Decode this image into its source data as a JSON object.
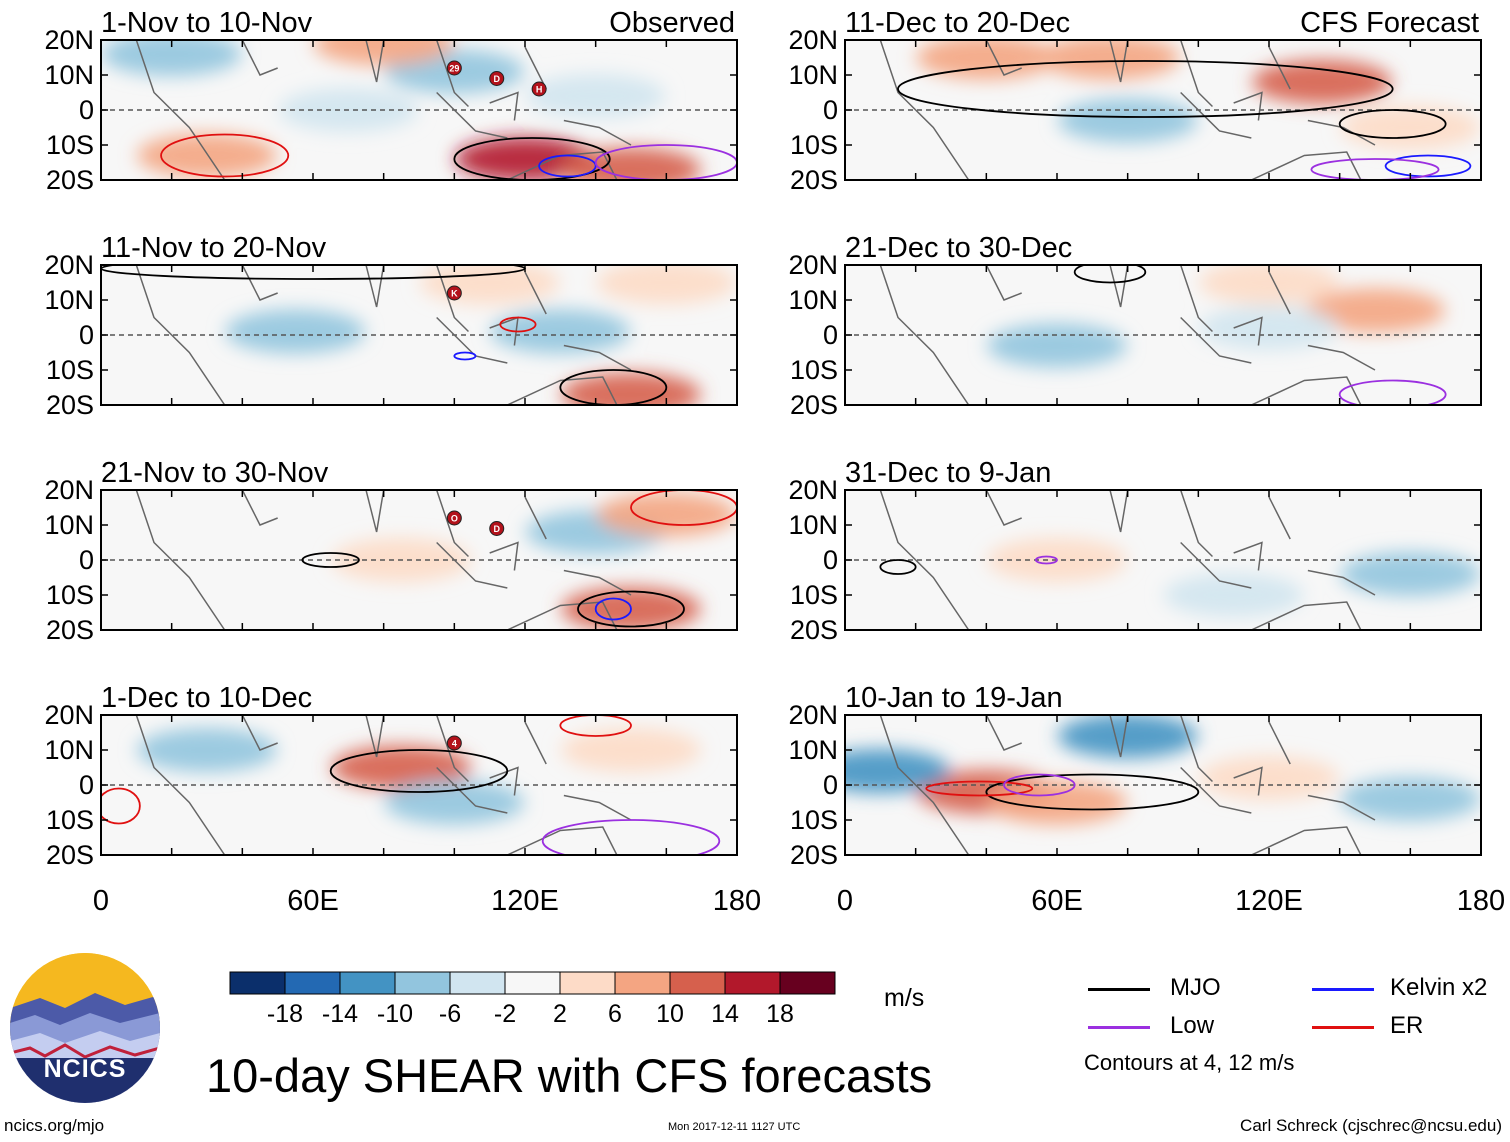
{
  "title": "10-day SHEAR with CFS forecasts",
  "units": "m/s",
  "contour_note": "Contours at 4, 12 m/s",
  "logo_text": "NCICS",
  "footer": {
    "site": "ncics.org/mjo",
    "timestamp": "Mon 2017-12-11 1127 UTC",
    "author": "Carl Schreck (cjschrec@ncsu.edu)"
  },
  "column_labels": {
    "observed": "Observed",
    "forecast": "CFS Forecast"
  },
  "legend": [
    {
      "label": "MJO",
      "color": "#000000"
    },
    {
      "label": "Kelvin x2",
      "color": "#1a1aff"
    },
    {
      "label": "Low",
      "color": "#9b30e0"
    },
    {
      "label": "ER",
      "color": "#e01010"
    }
  ],
  "colorbar": {
    "colors": [
      "#0b2f6b",
      "#2369b3",
      "#4393c3",
      "#92c5de",
      "#d1e5f0",
      "#f7f7f7",
      "#fddbc7",
      "#f4a582",
      "#d6604d",
      "#b2182b",
      "#67001f"
    ],
    "tick_labels": [
      "-18",
      "-14",
      "-10",
      "-6",
      "-2",
      "2",
      "6",
      "10",
      "14",
      "18"
    ]
  },
  "chart_data": {
    "type": "heatmap",
    "variable": "10-day vertical wind shear anomaly",
    "x_axis": {
      "ticks": [
        "0",
        "60E",
        "120E",
        "180"
      ],
      "range": [
        0,
        180
      ]
    },
    "y_axis": {
      "ticks": [
        "20N",
        "10N",
        "0",
        "10S",
        "20S"
      ],
      "range": [
        -20,
        20
      ]
    },
    "panels": [
      {
        "period": "1-Nov to 10-Nov",
        "column": "Observed",
        "blobs": [
          {
            "lon": 30,
            "lat": -13,
            "value": 10
          },
          {
            "lon": 120,
            "lat": -14,
            "value": 16
          },
          {
            "lon": 150,
            "lat": -17,
            "value": 12
          },
          {
            "lon": 70,
            "lat": 0,
            "value": -5
          },
          {
            "lon": 100,
            "lat": 11,
            "value": -6
          },
          {
            "lon": 20,
            "lat": 16,
            "value": -8
          },
          {
            "lon": 140,
            "lat": 4,
            "value": -4
          },
          {
            "lon": 80,
            "lat": 19,
            "value": 8
          }
        ],
        "contours": [
          {
            "type": "MJO",
            "lon": 122,
            "lat": -14,
            "rx": 22,
            "ry": 6
          },
          {
            "type": "ER",
            "lon": 35,
            "lat": -13,
            "rx": 18,
            "ry": 6
          },
          {
            "type": "Kelvin x2",
            "lon": 132,
            "lat": -16,
            "rx": 8,
            "ry": 3
          },
          {
            "type": "Low",
            "lon": 160,
            "lat": -15,
            "rx": 20,
            "ry": 5
          }
        ],
        "storms": [
          "29",
          "D",
          "H"
        ]
      },
      {
        "period": "11-Nov to 20-Nov",
        "column": "Observed",
        "blobs": [
          {
            "lon": 150,
            "lat": -17,
            "value": 14
          },
          {
            "lon": 55,
            "lat": 1,
            "value": -8
          },
          {
            "lon": 130,
            "lat": 1,
            "value": -6
          },
          {
            "lon": 110,
            "lat": 15,
            "value": 5
          },
          {
            "lon": 160,
            "lat": 15,
            "value": 6
          }
        ],
        "contours": [
          {
            "type": "MJO",
            "lon": 145,
            "lat": -15,
            "rx": 15,
            "ry": 5
          },
          {
            "type": "MJO",
            "lon": 60,
            "lat": 19,
            "rx": 60,
            "ry": 3
          },
          {
            "type": "ER",
            "lon": 118,
            "lat": 3,
            "rx": 5,
            "ry": 2
          },
          {
            "type": "Kelvin x2",
            "lon": 103,
            "lat": -6,
            "rx": 3,
            "ry": 1
          }
        ],
        "storms": [
          "K"
        ]
      },
      {
        "period": "21-Nov to 30-Nov",
        "column": "Observed",
        "blobs": [
          {
            "lon": 150,
            "lat": -14,
            "value": 14
          },
          {
            "lon": 85,
            "lat": 0,
            "value": 6
          },
          {
            "lon": 140,
            "lat": 8,
            "value": -6
          },
          {
            "lon": 160,
            "lat": 13,
            "value": 8
          }
        ],
        "contours": [
          {
            "type": "MJO",
            "lon": 150,
            "lat": -14,
            "rx": 15,
            "ry": 5
          },
          {
            "type": "ER",
            "lon": 165,
            "lat": 15,
            "rx": 15,
            "ry": 5
          },
          {
            "type": "Kelvin x2",
            "lon": 145,
            "lat": -14,
            "rx": 5,
            "ry": 3
          },
          {
            "type": "MJO",
            "lon": 65,
            "lat": 0,
            "rx": 8,
            "ry": 2
          }
        ],
        "storms": [
          "O",
          "D"
        ]
      },
      {
        "period": "1-Dec to 10-Dec",
        "column": "Observed",
        "blobs": [
          {
            "lon": 85,
            "lat": 5,
            "value": 12
          },
          {
            "lon": 100,
            "lat": -5,
            "value": -6
          },
          {
            "lon": 30,
            "lat": 10,
            "value": -6
          },
          {
            "lon": 150,
            "lat": 10,
            "value": 6
          }
        ],
        "contours": [
          {
            "type": "MJO",
            "lon": 90,
            "lat": 4,
            "rx": 25,
            "ry": 6
          },
          {
            "type": "ER",
            "lon": 5,
            "lat": -6,
            "rx": 6,
            "ry": 5
          },
          {
            "type": "Low",
            "lon": 150,
            "lat": -16,
            "rx": 25,
            "ry": 6
          },
          {
            "type": "ER",
            "lon": 140,
            "lat": 17,
            "rx": 10,
            "ry": 3
          }
        ],
        "storms": [
          "4"
        ]
      },
      {
        "period": "11-Dec to 20-Dec",
        "column": "CFS Forecast",
        "blobs": [
          {
            "lon": 135,
            "lat": 8,
            "value": 12
          },
          {
            "lon": 40,
            "lat": 15,
            "value": 10
          },
          {
            "lon": 75,
            "lat": 15,
            "value": 10
          },
          {
            "lon": 80,
            "lat": -3,
            "value": -6
          },
          {
            "lon": 160,
            "lat": -5,
            "value": 6
          }
        ],
        "contours": [
          {
            "type": "MJO",
            "lon": 85,
            "lat": 6,
            "rx": 70,
            "ry": 8
          },
          {
            "type": "MJO",
            "lon": 155,
            "lat": -4,
            "rx": 15,
            "ry": 4
          },
          {
            "type": "Kelvin x2",
            "lon": 165,
            "lat": -16,
            "rx": 12,
            "ry": 3
          },
          {
            "type": "Low",
            "lon": 150,
            "lat": -17,
            "rx": 18,
            "ry": 3
          }
        ],
        "storms": []
      },
      {
        "period": "21-Dec to 30-Dec",
        "column": "CFS Forecast",
        "blobs": [
          {
            "lon": 150,
            "lat": 7,
            "value": 8
          },
          {
            "lon": 60,
            "lat": -3,
            "value": -6
          },
          {
            "lon": 120,
            "lat": 2,
            "value": -4
          },
          {
            "lon": 120,
            "lat": 15,
            "value": 4
          }
        ],
        "contours": [
          {
            "type": "MJO",
            "lon": 75,
            "lat": 18,
            "rx": 10,
            "ry": 3
          },
          {
            "type": "Low",
            "lon": 155,
            "lat": -17,
            "rx": 15,
            "ry": 4
          }
        ],
        "storms": []
      },
      {
        "period": "31-Dec to 9-Jan",
        "column": "CFS Forecast",
        "blobs": [
          {
            "lon": 60,
            "lat": 0,
            "value": 6
          },
          {
            "lon": 160,
            "lat": -4,
            "value": -8
          },
          {
            "lon": 110,
            "lat": -10,
            "value": -4
          }
        ],
        "contours": [
          {
            "type": "Low",
            "lon": 57,
            "lat": 0,
            "rx": 3,
            "ry": 1
          },
          {
            "type": "MJO",
            "lon": 15,
            "lat": -2,
            "rx": 5,
            "ry": 2
          }
        ],
        "storms": []
      },
      {
        "period": "10-Jan to 19-Jan",
        "column": "CFS Forecast",
        "blobs": [
          {
            "lon": 40,
            "lat": -2,
            "value": 14
          },
          {
            "lon": 60,
            "lat": -5,
            "value": 10
          },
          {
            "lon": 80,
            "lat": 14,
            "value": -10
          },
          {
            "lon": 10,
            "lat": 4,
            "value": -10
          },
          {
            "lon": 160,
            "lat": -4,
            "value": -6
          },
          {
            "lon": 120,
            "lat": 2,
            "value": 6
          }
        ],
        "contours": [
          {
            "type": "MJO",
            "lon": 70,
            "lat": -2,
            "rx": 30,
            "ry": 5
          },
          {
            "type": "ER",
            "lon": 38,
            "lat": -1,
            "rx": 15,
            "ry": 2
          },
          {
            "type": "Low",
            "lon": 55,
            "lat": 0,
            "rx": 10,
            "ry": 3
          }
        ],
        "storms": []
      }
    ]
  }
}
